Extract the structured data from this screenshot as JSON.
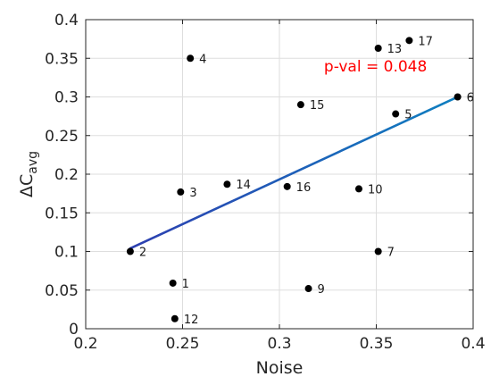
{
  "chart_data": {
    "type": "scatter",
    "title": "",
    "xlabel": "Noise",
    "ylabel_main": "ΔC",
    "ylabel_sub": "avg",
    "xlim": [
      0.2,
      0.4
    ],
    "ylim": [
      0,
      0.4
    ],
    "x_ticks": [
      0.2,
      0.25,
      0.3,
      0.35,
      0.4
    ],
    "y_ticks": [
      0,
      0.05,
      0.1,
      0.15,
      0.2,
      0.25,
      0.3,
      0.35,
      0.4
    ],
    "x_tick_labels": [
      "0.2",
      "0.25",
      "0.3",
      "0.35",
      "0.4"
    ],
    "y_tick_labels": [
      "0",
      "0.05",
      "0.1",
      "0.15",
      "0.2",
      "0.25",
      "0.3",
      "0.35",
      "0.4"
    ],
    "grid": true,
    "points": [
      {
        "label": "1",
        "x": 0.245,
        "y": 0.059
      },
      {
        "label": "2",
        "x": 0.223,
        "y": 0.1
      },
      {
        "label": "3",
        "x": 0.249,
        "y": 0.177
      },
      {
        "label": "4",
        "x": 0.254,
        "y": 0.35
      },
      {
        "label": "5",
        "x": 0.36,
        "y": 0.278
      },
      {
        "label": "6",
        "x": 0.392,
        "y": 0.3
      },
      {
        "label": "7",
        "x": 0.351,
        "y": 0.1
      },
      {
        "label": "9",
        "x": 0.315,
        "y": 0.052
      },
      {
        "label": "10",
        "x": 0.341,
        "y": 0.181
      },
      {
        "label": "12",
        "x": 0.246,
        "y": 0.013
      },
      {
        "label": "13",
        "x": 0.351,
        "y": 0.363
      },
      {
        "label": "14",
        "x": 0.273,
        "y": 0.187
      },
      {
        "label": "15",
        "x": 0.311,
        "y": 0.29
      },
      {
        "label": "16",
        "x": 0.304,
        "y": 0.184
      },
      {
        "label": "17",
        "x": 0.367,
        "y": 0.373
      }
    ],
    "fit_line": {
      "x": [
        0.223,
        0.392
      ],
      "y": [
        0.104,
        0.3
      ]
    },
    "annotation": {
      "text": "p-val = 0.048",
      "x": 0.323,
      "y": 0.333
    },
    "colors": {
      "point": "#000000",
      "fit_start": "#2d3fb0",
      "fit_end": "#0f7fc0",
      "annotation": "#ff0000",
      "grid": "#dedede",
      "axis": "#262626"
    }
  }
}
